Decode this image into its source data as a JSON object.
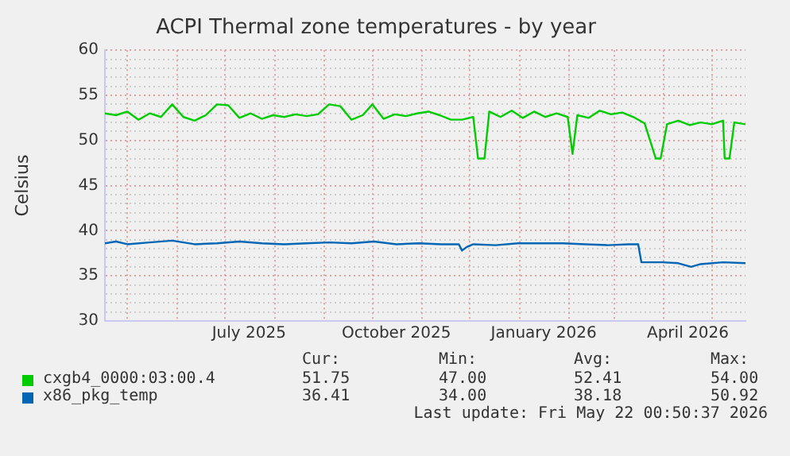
{
  "chart_data": {
    "type": "line",
    "title": "ACPI Thermal zone temperatures - by year",
    "ylabel": "Celsius",
    "xlim": [
      "2025-04-17",
      "2026-05-22"
    ],
    "xticks": [
      {
        "value": "2025-05-01",
        "label": null
      },
      {
        "value": "2025-06-01",
        "label": null
      },
      {
        "value": "2025-07-01",
        "label": null
      },
      {
        "value": "2025-07-16",
        "label": "July 2025"
      },
      {
        "value": "2025-08-01",
        "label": null
      },
      {
        "value": "2025-09-01",
        "label": null
      },
      {
        "value": "2025-10-01",
        "label": null
      },
      {
        "value": "2025-10-16",
        "label": "October 2025"
      },
      {
        "value": "2025-11-01",
        "label": null
      },
      {
        "value": "2025-12-01",
        "label": null
      },
      {
        "value": "2026-01-01",
        "label": null
      },
      {
        "value": "2026-01-16",
        "label": "January 2026"
      },
      {
        "value": "2026-02-01",
        "label": null
      },
      {
        "value": "2026-03-01",
        "label": null
      },
      {
        "value": "2026-04-01",
        "label": null
      },
      {
        "value": "2026-04-16",
        "label": "April 2026"
      },
      {
        "value": "2026-05-01",
        "label": null
      }
    ],
    "ylim": [
      30,
      60
    ],
    "yticks": [
      30,
      {
        "value": 31,
        "label": null
      },
      {
        "value": 32,
        "label": null
      },
      {
        "value": 33,
        "label": null
      },
      {
        "value": 34,
        "label": null
      },
      35,
      {
        "value": 36,
        "label": null
      },
      {
        "value": 37,
        "label": null
      },
      {
        "value": 38,
        "label": null
      },
      {
        "value": 39,
        "label": null
      },
      40,
      {
        "value": 41,
        "label": null
      },
      {
        "value": 42,
        "label": null
      },
      {
        "value": 43,
        "label": null
      },
      {
        "value": 44,
        "label": null
      },
      45,
      {
        "value": 46,
        "label": null
      },
      {
        "value": 47,
        "label": null
      },
      {
        "value": 48,
        "label": null
      },
      {
        "value": 49,
        "label": null
      },
      50,
      {
        "value": 51,
        "label": null
      },
      {
        "value": 52,
        "label": null
      },
      {
        "value": 53,
        "label": null
      },
      {
        "value": 54,
        "label": null
      },
      55,
      {
        "value": 56,
        "label": null
      },
      {
        "value": 57,
        "label": null
      },
      {
        "value": 58,
        "label": null
      },
      {
        "value": 59,
        "label": null
      },
      60
    ],
    "grid": true,
    "legend": "bottom",
    "marker": "none",
    "line_style": "solid",
    "series": [
      {
        "name": "cxgb4_0000:03:00.4",
        "color": "#00cc00",
        "x": [
          "2025-04-17",
          "2025-04-24",
          "2025-05-01",
          "2025-05-08",
          "2025-05-15",
          "2025-05-22",
          "2025-05-29",
          "2025-06-05",
          "2025-06-12",
          "2025-06-19",
          "2025-06-26",
          "2025-07-03",
          "2025-07-10",
          "2025-07-17",
          "2025-07-24",
          "2025-07-31",
          "2025-08-07",
          "2025-08-14",
          "2025-08-21",
          "2025-08-28",
          "2025-09-04",
          "2025-09-11",
          "2025-09-18",
          "2025-09-25",
          "2025-10-01",
          "2025-10-08",
          "2025-10-15",
          "2025-10-22",
          "2025-10-29",
          "2025-11-05",
          "2025-11-12",
          "2025-11-19",
          "2025-11-26",
          "2025-12-03",
          "2025-12-06",
          "2025-12-10",
          "2025-12-13",
          "2025-12-20",
          "2025-12-27",
          "2026-01-03",
          "2026-01-10",
          "2026-01-17",
          "2026-01-24",
          "2026-01-31",
          "2026-02-03",
          "2026-02-06",
          "2026-02-13",
          "2026-02-20",
          "2026-02-27",
          "2026-03-06",
          "2026-03-13",
          "2026-03-20",
          "2026-03-27",
          "2026-03-30",
          "2026-04-03",
          "2026-04-10",
          "2026-04-17",
          "2026-04-24",
          "2026-05-01",
          "2026-05-08",
          "2026-05-09",
          "2026-05-12",
          "2026-05-15",
          "2026-05-22"
        ],
        "values": [
          53.0,
          52.8,
          53.2,
          52.3,
          53.0,
          52.6,
          54.0,
          52.6,
          52.2,
          52.8,
          54.0,
          53.9,
          52.5,
          53.0,
          52.4,
          52.8,
          52.6,
          52.9,
          52.7,
          52.9,
          54.0,
          53.8,
          52.3,
          52.8,
          54.0,
          52.4,
          52.9,
          52.7,
          53.0,
          53.2,
          52.8,
          52.3,
          52.3,
          52.6,
          48.0,
          48.0,
          53.2,
          52.6,
          53.3,
          52.5,
          53.2,
          52.6,
          53.0,
          52.6,
          48.5,
          52.8,
          52.5,
          53.3,
          52.9,
          53.1,
          52.6,
          51.9,
          48.0,
          48.0,
          51.8,
          52.2,
          51.7,
          52.0,
          51.8,
          52.2,
          48.0,
          48.0,
          52.0,
          51.8
        ]
      },
      {
        "name": "x86_pkg_temp",
        "color": "#0066b3",
        "x": [
          "2025-04-17",
          "2025-04-24",
          "2025-05-01",
          "2025-05-15",
          "2025-05-29",
          "2025-06-12",
          "2025-06-26",
          "2025-07-10",
          "2025-07-24",
          "2025-08-07",
          "2025-08-21",
          "2025-09-04",
          "2025-09-18",
          "2025-10-02",
          "2025-10-16",
          "2025-10-30",
          "2025-11-13",
          "2025-11-24",
          "2025-11-26",
          "2025-11-29",
          "2025-12-03",
          "2025-12-17",
          "2025-12-31",
          "2026-01-14",
          "2026-01-28",
          "2026-02-11",
          "2026-02-25",
          "2026-03-10",
          "2026-03-16",
          "2026-03-18",
          "2026-03-31",
          "2026-04-10",
          "2026-04-18",
          "2026-04-24",
          "2026-05-08",
          "2026-05-22"
        ],
        "values": [
          38.6,
          38.8,
          38.5,
          38.7,
          38.9,
          38.5,
          38.6,
          38.8,
          38.6,
          38.5,
          38.6,
          38.7,
          38.6,
          38.8,
          38.5,
          38.6,
          38.5,
          38.5,
          37.8,
          38.2,
          38.5,
          38.4,
          38.6,
          38.6,
          38.6,
          38.5,
          38.4,
          38.5,
          38.5,
          36.5,
          36.5,
          36.4,
          36.0,
          36.3,
          36.5,
          36.4
        ]
      }
    ],
    "annotations": [
      "Cur:",
      "Min:",
      "Avg:",
      "Max:",
      "51.75",
      "47.00",
      "52.41",
      "54.00",
      "36.41",
      "34.00",
      "38.18",
      "50.92",
      "Last update: Fri May 22 00:50:37 2026"
    ]
  }
}
